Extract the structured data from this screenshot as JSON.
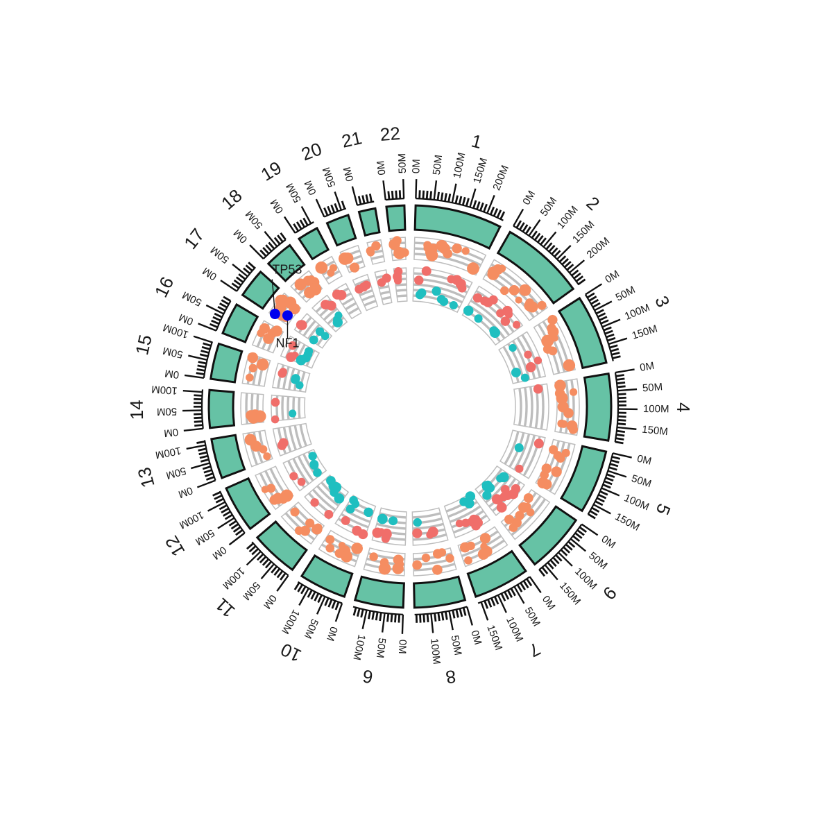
{
  "colors": {
    "ideogram_fill": "#66c2a5",
    "ideogram_stroke": "#111111",
    "track_bg_fill": "#ffffff",
    "track_stripe": "#bdbdbd",
    "track_border": "#bdbdbd",
    "snv_points": "#f58d61",
    "gain_points": "#f06e6a",
    "loss_points": "#1fbfc0",
    "highlight_points": "#0000ee",
    "tick_color": "#111111"
  },
  "chromosomes": [
    {
      "name": "1",
      "length_mb": 248,
      "tick_labels": [
        "0M",
        "50M",
        "100M",
        "150M",
        "200M"
      ]
    },
    {
      "name": "2",
      "length_mb": 242,
      "tick_labels": [
        "0M",
        "50M",
        "100M",
        "150M",
        "200M"
      ]
    },
    {
      "name": "3",
      "length_mb": 198,
      "tick_labels": [
        "0M",
        "50M",
        "100M",
        "150M"
      ]
    },
    {
      "name": "4",
      "length_mb": 190,
      "tick_labels": [
        "0M",
        "50M",
        "100M",
        "150M"
      ]
    },
    {
      "name": "5",
      "length_mb": 181,
      "tick_labels": [
        "0M",
        "50M",
        "100M",
        "150M"
      ]
    },
    {
      "name": "9",
      "length_mb": 171,
      "tick_labels": [
        "0M",
        "50M",
        "100M",
        "150M"
      ]
    },
    {
      "name": "7",
      "length_mb": 159,
      "tick_labels": [
        "0M",
        "50M",
        "100M",
        "150M"
      ]
    },
    {
      "name": "8",
      "length_mb": 145,
      "tick_labels": [
        "0M",
        "50M",
        "100M"
      ]
    },
    {
      "name": "6",
      "length_mb": 138,
      "tick_labels": [
        "0M",
        "50M",
        "100M"
      ]
    },
    {
      "name": "10",
      "length_mb": 134,
      "tick_labels": [
        "0M",
        "50M",
        "100M"
      ]
    },
    {
      "name": "11",
      "length_mb": 135,
      "tick_labels": [
        "0M",
        "50M",
        "100M"
      ]
    },
    {
      "name": "12",
      "length_mb": 133,
      "tick_labels": [
        "0M",
        "50M",
        "100M"
      ]
    },
    {
      "name": "13",
      "length_mb": 114,
      "tick_labels": [
        "0M",
        "50M",
        "100M"
      ]
    },
    {
      "name": "14",
      "length_mb": 107,
      "tick_labels": [
        "0M",
        "50M",
        "100M"
      ]
    },
    {
      "name": "15",
      "length_mb": 102,
      "tick_labels": [
        "0M",
        "50M",
        "100M"
      ]
    },
    {
      "name": "16",
      "length_mb": 90,
      "tick_labels": [
        "0M",
        "50M"
      ]
    },
    {
      "name": "17",
      "length_mb": 83,
      "tick_labels": [
        "0M",
        "50M"
      ]
    },
    {
      "name": "18",
      "length_mb": 80,
      "tick_labels": [
        "0M",
        "50M"
      ]
    },
    {
      "name": "19",
      "length_mb": 59,
      "tick_labels": [
        "0M",
        "50M"
      ]
    },
    {
      "name": "20",
      "length_mb": 64,
      "tick_labels": [
        "0M",
        "50M"
      ]
    },
    {
      "name": "21",
      "length_mb": 47,
      "tick_labels": [
        "0M"
      ]
    },
    {
      "name": "22",
      "length_mb": 51,
      "tick_labels": [
        "0M",
        "50M"
      ]
    }
  ],
  "highlight_genes": [
    {
      "name": "TP53",
      "chromosome": "17",
      "position_mb": 7.6
    },
    {
      "name": "NF1",
      "chromosome": "17",
      "position_mb": 29.5
    }
  ],
  "tracks": {
    "snv": {
      "points_per_chromosome": [
        14,
        12,
        9,
        10,
        9,
        8,
        7,
        6,
        6,
        7,
        6,
        6,
        4,
        7,
        4,
        5,
        9,
        6,
        3,
        3,
        3,
        4
      ]
    },
    "gain": {
      "points_per_chromosome": [
        6,
        9,
        3,
        2,
        2,
        8,
        8,
        3,
        6,
        3,
        2,
        2,
        2,
        2,
        2,
        3,
        2,
        2,
        2,
        3,
        2,
        3
      ]
    },
    "loss": {
      "points_per_chromosome": [
        6,
        4,
        3,
        0,
        1,
        7,
        4,
        1,
        2,
        4,
        5,
        4,
        0,
        1,
        3,
        4,
        3,
        3,
        0,
        0,
        0,
        0
      ]
    }
  }
}
